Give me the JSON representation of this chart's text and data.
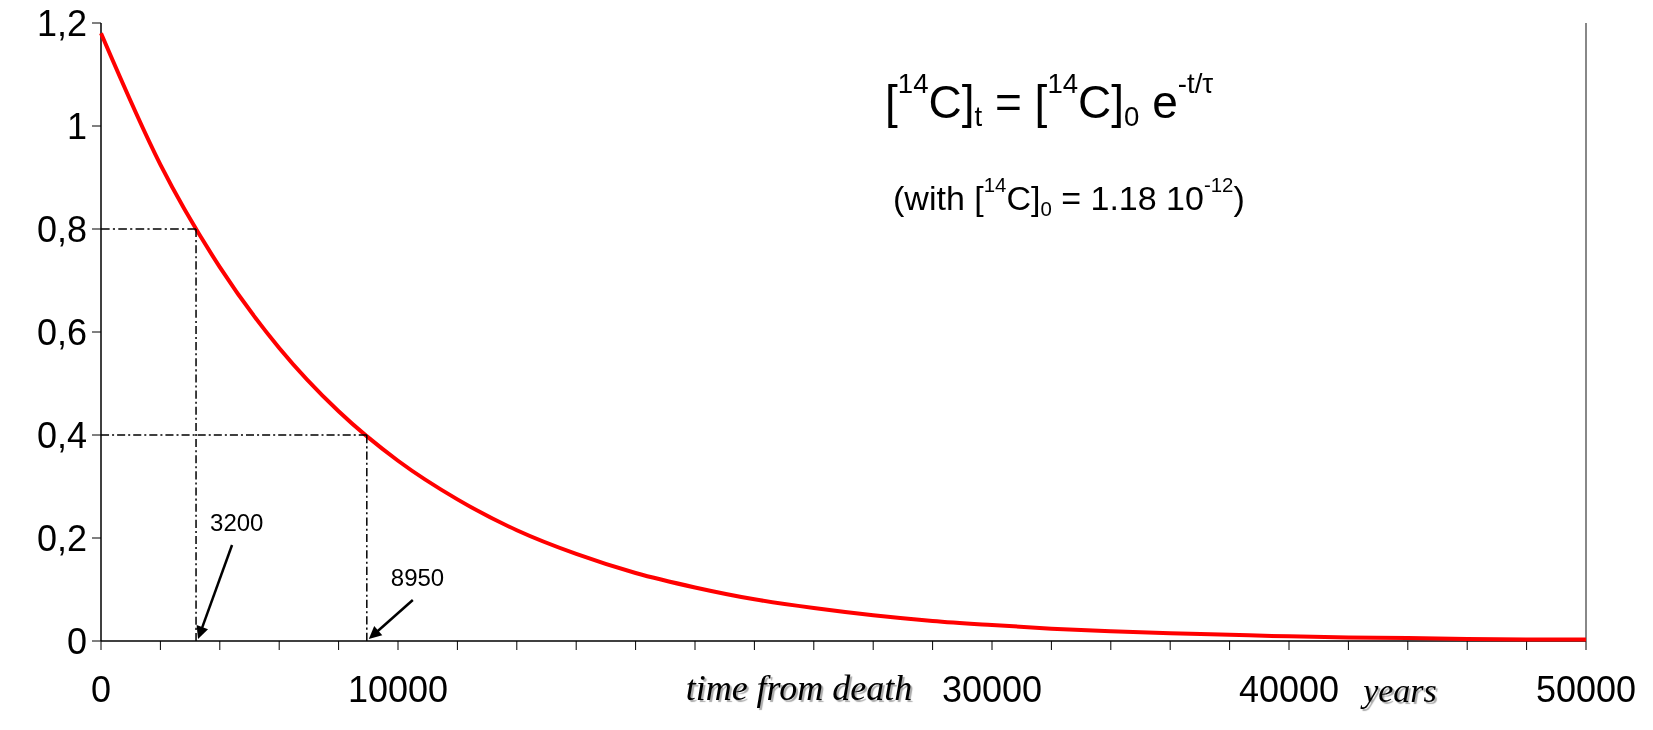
{
  "chart_data": {
    "type": "line",
    "xlabel": "time from death",
    "x": [
      0,
      2000,
      4000,
      6000,
      8000,
      10000,
      12000,
      14000,
      16000,
      18000,
      20000,
      22000,
      24000,
      26000,
      28000,
      30000,
      32000,
      34000,
      36000,
      38000,
      40000,
      42000,
      44000,
      46000,
      48000,
      50000
    ],
    "series": [
      {
        "color": "#ff0000",
        "values": [
          1.18,
          0.925,
          0.726,
          0.569,
          0.446,
          0.35,
          0.275,
          0.215,
          0.169,
          0.132,
          0.104,
          0.081,
          0.064,
          0.05,
          0.039,
          0.031,
          0.024,
          0.019,
          0.015,
          0.012,
          0.009,
          0.007,
          0.006,
          0.004,
          0.003,
          0.003
        ]
      },
      {
        "color": "#000000",
        "line_style": "dashed",
        "x": [
          0,
          3200
        ],
        "values": [
          0.8,
          0.8
        ]
      },
      {
        "color": "#000000",
        "line_style": "dashed",
        "x": [
          3200,
          3200
        ],
        "values": [
          0,
          0.8
        ]
      },
      {
        "color": "#000000",
        "line_style": "dashed",
        "x": [
          0,
          8950
        ],
        "values": [
          0.4,
          0.4
        ]
      },
      {
        "color": "#000000",
        "line_style": "dashed",
        "x": [
          8950,
          8950
        ],
        "values": [
          0,
          0.4
        ]
      }
    ],
    "xlim": [
      0,
      50000
    ],
    "xticks": [
      0,
      {
        "value": 2000,
        "label": null
      },
      {
        "value": 4000,
        "label": null
      },
      {
        "value": 6000,
        "label": null
      },
      {
        "value": 8000,
        "label": null
      },
      10000,
      {
        "value": 12000,
        "label": null
      },
      {
        "value": 14000,
        "label": null
      },
      {
        "value": 16000,
        "label": null
      },
      {
        "value": 18000,
        "label": null
      },
      {
        "value": 20000,
        "label": null
      },
      {
        "value": 22000,
        "label": null
      },
      {
        "value": 24000,
        "label": null
      },
      {
        "value": 26000,
        "label": null
      },
      {
        "value": 28000,
        "label": null
      },
      30000,
      {
        "value": 32000,
        "label": null
      },
      {
        "value": 34000,
        "label": null
      },
      {
        "value": 36000,
        "label": null
      },
      {
        "value": 38000,
        "label": null
      },
      40000,
      {
        "value": 42000,
        "label": null
      },
      {
        "value": 44000,
        "label": null
      },
      {
        "value": 46000,
        "label": null
      },
      {
        "value": 48000,
        "label": null
      },
      50000
    ],
    "ylim": [
      0,
      1.2
    ],
    "yticks": [
      0,
      {
        "value": 0.2,
        "label": "0,2"
      },
      {
        "value": 0.4,
        "label": "0,4"
      },
      {
        "value": 0.6,
        "label": "0,6"
      },
      {
        "value": 0.8,
        "label": "0,8"
      },
      1,
      {
        "value": 1.2,
        "label": "1,2"
      }
    ],
    "annotations": [
      "[$^{14}$C]$_{t}$ = [$^{14}$C]$_{0}$ e$^{-t/τ}$",
      "(with [$^{14}$C]$_{0}$ = 1.18 10$^{-12}$)",
      "years",
      {
        "text": "3200",
        "x": 3200,
        "y": 0
      },
      {
        "text": "8950",
        "x": 8950,
        "y": 0
      }
    ],
    "grid": false,
    "marker": "none"
  }
}
